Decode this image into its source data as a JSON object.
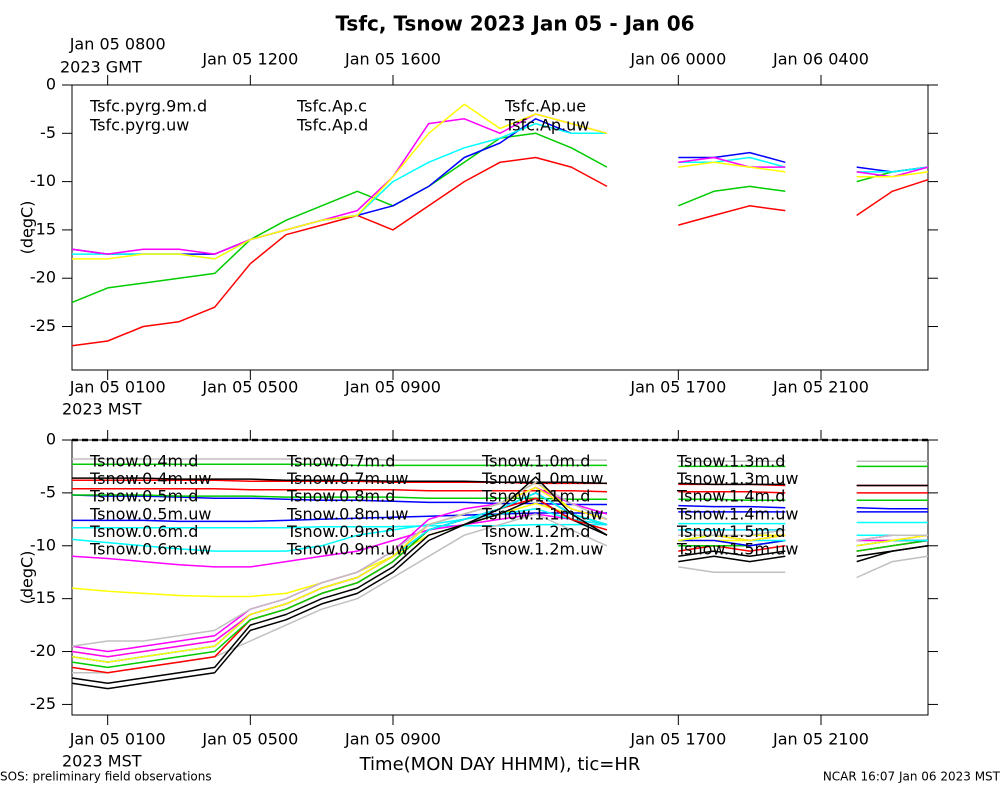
{
  "title": "Tsfc, Tsnow 2023 Jan 05 - Jan 06",
  "xlabel": "Time(MON DAY HHMM), tic=HR",
  "footer_left": "SOS: preliminary field observations",
  "footer_right": "NCAR 16:07 Jan 06 2023 MST",
  "chart_data": [
    {
      "type": "line",
      "ylabel": "(degC)",
      "x": [
        0,
        1,
        2,
        3,
        4,
        5,
        6,
        7,
        8,
        9,
        10,
        11,
        12,
        13,
        14,
        15,
        16,
        17,
        18,
        19,
        20,
        21,
        22,
        23,
        24
      ],
      "xlim": [
        0,
        24
      ],
      "ylim": [
        -29.5,
        0
      ],
      "yticks": [
        0,
        -5,
        -10,
        -15,
        -20,
        -25
      ],
      "xticks": [
        {
          "value": 1,
          "label": "Jan 05 0100"
        },
        {
          "value": 5,
          "label": "Jan 05 0500"
        },
        {
          "value": 9,
          "label": "Jan 05 0900"
        },
        {
          "value": 17,
          "label": "Jan 05 1700"
        },
        {
          "value": 21,
          "label": "Jan 05 2100"
        }
      ],
      "xtick_year_label": "2023 MST",
      "x2ticks": [
        {
          "value": 1,
          "label": "Jan 05 0800"
        },
        {
          "value": 5,
          "label": "Jan 05 1200"
        },
        {
          "value": 9,
          "label": "Jan 05 1600"
        },
        {
          "value": 17,
          "label": "Jan 06 0000"
        },
        {
          "value": 21,
          "label": "Jan 06 0400"
        }
      ],
      "x2tick_year_label": "2023 GMT",
      "series": [
        {
          "name": "Tsfc.pyrg.9m.d",
          "color": "#ff0000",
          "values": [
            -27,
            -26.5,
            -25,
            -24.5,
            -23,
            -18.5,
            -15.5,
            -14.5,
            -13.5,
            -15,
            -12.5,
            -10,
            -8,
            -7.5,
            -8.5,
            -10.5,
            null,
            -14.5,
            -13.5,
            -12.5,
            -13,
            null,
            -13.5,
            -11,
            -9.8
          ]
        },
        {
          "name": "Tsfc.pyrg.uw",
          "color": "#00cc00",
          "values": [
            -22.5,
            -21,
            -20.5,
            -20,
            -19.5,
            -16,
            -14,
            -12.5,
            -11,
            -12.5,
            -10.5,
            -8,
            -5.5,
            -5,
            -6.5,
            -8.5,
            null,
            -12.5,
            -11,
            -10.5,
            -11,
            null,
            -10,
            -9,
            -8.5
          ]
        },
        {
          "name": "Tsfc.Ap.c",
          "color": "#0000ff",
          "values": [
            -17,
            -17.5,
            -17.5,
            -17.5,
            -17.5,
            -16,
            -15,
            -14,
            -13.5,
            -12.5,
            -10.5,
            -7.5,
            -6,
            -3.5,
            -5,
            -5,
            null,
            -7.5,
            -7.5,
            -7,
            -8,
            null,
            -8.5,
            -9,
            -8.5
          ]
        },
        {
          "name": "Tsfc.Ap.d",
          "color": "#00ffff",
          "values": [
            -17.5,
            -17.5,
            -17.5,
            -17.5,
            -18,
            -16,
            -15,
            -14,
            -13.5,
            -10,
            -8,
            -6.5,
            -5.5,
            -4,
            -5,
            -5,
            null,
            -8,
            -8,
            -7.5,
            -8.5,
            null,
            -9,
            -9,
            -8.5
          ]
        },
        {
          "name": "Tsfc.Ap.ue",
          "color": "#ff00ff",
          "values": [
            -17,
            -17.5,
            -17,
            -17,
            -17.5,
            -16,
            -15,
            -14,
            -13,
            -9.5,
            -4,
            -3.5,
            -5,
            -3,
            -4,
            -5,
            null,
            -8,
            -7.5,
            -8.5,
            -8.5,
            null,
            -9,
            -9.5,
            -8.5
          ]
        },
        {
          "name": "Tsfc.Ap.uw",
          "color": "#ffff00",
          "values": [
            -18,
            -18,
            -17.5,
            -17.5,
            -18,
            -16,
            -15,
            -14,
            -13.5,
            -9.5,
            -5,
            -2,
            -4.5,
            -3,
            -4,
            -5,
            null,
            -8.5,
            -8,
            -8.5,
            -9,
            null,
            -9.5,
            -9.5,
            -9
          ]
        }
      ]
    },
    {
      "type": "line",
      "ylabel": "(degC)",
      "x": [
        0,
        1,
        2,
        3,
        4,
        5,
        6,
        7,
        8,
        9,
        10,
        11,
        12,
        13,
        14,
        15,
        16,
        17,
        18,
        19,
        20,
        21,
        22,
        23,
        24
      ],
      "xlim": [
        0,
        24
      ],
      "ylim": [
        -26,
        0
      ],
      "yticks": [
        0,
        -5,
        -10,
        -15,
        -20,
        -25
      ],
      "reference_line": 0,
      "xticks": [
        {
          "value": 1,
          "label": "Jan 05 0100"
        },
        {
          "value": 5,
          "label": "Jan 05 0500"
        },
        {
          "value": 9,
          "label": "Jan 05 0900"
        },
        {
          "value": 17,
          "label": "Jan 05 1700"
        },
        {
          "value": 21,
          "label": "Jan 05 2100"
        }
      ],
      "xtick_year_label": "2023 MST",
      "series": [
        {
          "name": "Tsnow.0.4m.d",
          "color": "#ff0000",
          "values": [
            -3.8,
            -3.8,
            -3.8,
            -3.8,
            -3.8,
            -3.9,
            -3.9,
            -3.9,
            -3.9,
            -4,
            -4,
            -4,
            -4,
            -4.1,
            -4.1,
            -4.1,
            null,
            -4.2,
            -4.2,
            -4.2,
            -4.3,
            null,
            -4.3,
            -4.3,
            -4.3
          ]
        },
        {
          "name": "Tsnow.0.4m.uw",
          "color": "#00cc00",
          "values": [
            -2.3,
            -2.3,
            -2.3,
            -2.3,
            -2.3,
            -2.3,
            -2.3,
            -2.3,
            -2.4,
            -2.4,
            -2.4,
            -2.4,
            -2.4,
            -2.4,
            -2.4,
            -2.4,
            null,
            -2.5,
            -2.5,
            -2.5,
            -2.5,
            null,
            -2.5,
            -2.5,
            -2.5
          ]
        },
        {
          "name": "Tsnow.0.5m.d",
          "color": "#0000ff",
          "values": [
            -5.2,
            -5.3,
            -5.3,
            -5.4,
            -5.5,
            -5.5,
            -5.6,
            -5.7,
            -5.7,
            -5.8,
            -5.9,
            -5.9,
            -6,
            -6,
            -6.1,
            -6.1,
            null,
            -6.2,
            -6.3,
            -6.3,
            -6.4,
            null,
            -6.4,
            -6.5,
            -6.5
          ]
        },
        {
          "name": "Tsnow.0.5m.uw",
          "color": "#00ffff",
          "values": [
            -8.3,
            -8.3,
            -8.3,
            -8.3,
            -8.3,
            -8.3,
            -8.3,
            -8.2,
            -8.2,
            -8.2,
            -8.1,
            -8.1,
            -8.1,
            -8,
            -8,
            -8,
            null,
            -7.9,
            -7.9,
            -7.9,
            -7.9,
            null,
            -7.8,
            -7.8,
            -7.8
          ]
        },
        {
          "name": "Tsnow.0.6m.d",
          "color": "#ff00ff",
          "values": [
            -11,
            -11.2,
            -11.5,
            -11.8,
            -12,
            -12,
            -11.5,
            -11,
            -10.5,
            -9.5,
            -8.5,
            -8,
            -7.5,
            -7,
            -7.5,
            -8,
            null,
            -8.5,
            -8.5,
            -8.5,
            -8.5,
            null,
            -9,
            -9,
            -9
          ]
        },
        {
          "name": "Tsnow.0.6m.uw",
          "color": "#ffff00",
          "values": [
            -14,
            -14.3,
            -14.5,
            -14.7,
            -14.8,
            -14.8,
            -14.5,
            -13.5,
            -12.5,
            -11,
            -9,
            -8,
            -7,
            -6,
            -7,
            -8,
            null,
            -9,
            -9,
            -9,
            -9,
            null,
            -9.5,
            -9.5,
            -9.5
          ]
        },
        {
          "name": "Tsnow.0.7m.d",
          "color": "#c0c0c0",
          "values": [
            -1.8,
            -1.8,
            -1.8,
            -1.8,
            -1.8,
            -1.8,
            -1.8,
            -1.8,
            -1.8,
            -1.9,
            -1.9,
            -1.9,
            -1.9,
            -1.9,
            -1.9,
            -1.9,
            null,
            -2,
            -2,
            -2,
            -2,
            null,
            -2,
            -2,
            -2
          ]
        },
        {
          "name": "Tsnow.0.7m.uw",
          "color": "#000000",
          "values": [
            -3.6,
            -3.6,
            -3.6,
            -3.7,
            -3.7,
            -3.7,
            -3.8,
            -3.8,
            -3.8,
            -3.9,
            -3.9,
            -3.9,
            -4,
            -4,
            -4,
            -4.1,
            null,
            -4.1,
            -4.2,
            -4.2,
            -4.2,
            null,
            -4.3,
            -4.3,
            -4.3
          ]
        },
        {
          "name": "Tsnow.0.8m.d",
          "color": "#ff0000",
          "values": [
            -4.6,
            -4.6,
            -4.6,
            -4.6,
            -4.6,
            -4.7,
            -4.7,
            -4.7,
            -4.7,
            -4.7,
            -4.8,
            -4.8,
            -4.8,
            -4.8,
            -4.8,
            -4.9,
            null,
            -4.9,
            -4.9,
            -4.9,
            -5,
            null,
            -5,
            -5,
            -5
          ]
        },
        {
          "name": "Tsnow.0.8m.uw",
          "color": "#00cc00",
          "values": [
            -5.2,
            -5.2,
            -5.2,
            -5.3,
            -5.3,
            -5.3,
            -5.4,
            -5.4,
            -5.4,
            -5.4,
            -5.5,
            -5.5,
            -5.5,
            -5.5,
            -5.6,
            -5.6,
            null,
            -5.6,
            -5.6,
            -5.7,
            -5.7,
            null,
            -5.7,
            -5.7,
            -5.7
          ]
        },
        {
          "name": "Tsnow.0.9m.d",
          "color": "#0000ff",
          "values": [
            -7.6,
            -7.6,
            -7.6,
            -7.7,
            -7.7,
            -7.7,
            -7.6,
            -7.5,
            -7.4,
            -7.3,
            -7.2,
            -7.1,
            -7,
            -6.9,
            -6.9,
            -6.9,
            null,
            -6.8,
            -6.8,
            -6.8,
            -6.8,
            null,
            -6.8,
            -6.8,
            -6.8
          ]
        },
        {
          "name": "Tsnow.0.9m.uw",
          "color": "#00ffff",
          "values": [
            -9.4,
            -9.7,
            -10,
            -10.3,
            -10.5,
            -10.5,
            -10.5,
            -10,
            -9,
            -8.5,
            -8,
            -7.5,
            -7,
            -6.5,
            -7.5,
            -8,
            null,
            -8.5,
            -8.5,
            -8.5,
            -8.5,
            null,
            -9,
            -9,
            -9
          ]
        },
        {
          "name": "Tsnow.1.0m.d",
          "color": "#ff00ff",
          "values": [
            -19.5,
            -20,
            -19.5,
            -19,
            -18.5,
            -16,
            -15,
            -13.5,
            -12.5,
            -10.5,
            -7.5,
            -6.5,
            -6,
            -4.5,
            -6,
            -7,
            null,
            -9,
            -9,
            -9.5,
            -9,
            null,
            -9.5,
            -9.5,
            -9
          ]
        },
        {
          "name": "Tsnow.1.0m.uw",
          "color": "#ffff00",
          "values": [
            -20,
            -20.5,
            -20,
            -19.5,
            -19,
            -16.5,
            -15.5,
            -14,
            -13,
            -11,
            -8,
            -7,
            -6,
            -4,
            -6.5,
            -7.5,
            null,
            -9.5,
            -9.5,
            -9.5,
            -9,
            null,
            -10,
            -9.5,
            -9.5
          ]
        },
        {
          "name": "Tsnow.1.1m.d",
          "color": "#c0c0c0",
          "values": [
            -22,
            -22,
            -21.5,
            -21,
            -20.5,
            -19,
            -17.5,
            -16,
            -15,
            -13,
            -11,
            -9,
            -8,
            -7,
            -8.5,
            -10,
            null,
            -12,
            -12.5,
            -12.5,
            -12.5,
            null,
            -13,
            -11.5,
            -11
          ]
        },
        {
          "name": "Tsnow.1.1m.uw",
          "color": "#000000",
          "values": [
            -22.5,
            -23,
            -22.5,
            -22,
            -21.5,
            -17.5,
            -16.5,
            -15,
            -14,
            -12,
            -9,
            -8,
            -7,
            -5.5,
            -7.5,
            -9,
            null,
            -11,
            -10.5,
            -11,
            -10.5,
            null,
            -11,
            -10.5,
            -10
          ]
        },
        {
          "name": "Tsnow.1.2m.d",
          "color": "#ff0000",
          "values": [
            -21.5,
            -22,
            -21.5,
            -21,
            -20.5,
            -17,
            -16,
            -14.5,
            -13.5,
            -11.5,
            -8.5,
            -7.5,
            -6.5,
            -5.5,
            -7.5,
            -8.5,
            null,
            -10.5,
            -10,
            -10.5,
            -10,
            null,
            -10.5,
            -10,
            -9.5
          ]
        },
        {
          "name": "Tsnow.1.2m.uw",
          "color": "#00cc00",
          "values": [
            -21,
            -21.5,
            -21,
            -20.5,
            -20,
            -17,
            -16,
            -14.5,
            -13.5,
            -11.5,
            -8.5,
            -7.5,
            -6.5,
            -5,
            -7,
            -8,
            null,
            -10,
            -10,
            -10,
            -9.5,
            null,
            -10.5,
            -10,
            -9.5
          ]
        },
        {
          "name": "Tsnow.1.3m.d",
          "color": "#0000ff",
          "values": [
            -20.5,
            -21,
            -20.5,
            -20,
            -19.5,
            -16.5,
            -15.5,
            -14,
            -13,
            -11,
            -8.5,
            -7.5,
            -6.5,
            -5,
            -7,
            -8,
            null,
            -9.5,
            -9.5,
            -10,
            -9.5,
            null,
            -10,
            -9.5,
            -9.5
          ]
        },
        {
          "name": "Tsnow.1.3m.uw",
          "color": "#00ffff",
          "values": [
            -20.5,
            -21,
            -20.5,
            -20,
            -19.5,
            -16.5,
            -15.5,
            -14,
            -13,
            -11,
            -8.5,
            -7.5,
            -6.5,
            -5,
            -7,
            -8,
            null,
            -9.5,
            -9,
            -9.5,
            -9.5,
            null,
            -10,
            -9.5,
            -9.5
          ]
        },
        {
          "name": "Tsnow.1.4m.d",
          "color": "#ff00ff",
          "values": [
            -20,
            -20.5,
            -20,
            -19.5,
            -19,
            -16.5,
            -15.5,
            -14,
            -13,
            -11,
            -8,
            -7,
            -6,
            -4.5,
            -6.5,
            -7.5,
            null,
            -9,
            -9,
            -9.5,
            -9,
            null,
            -9.5,
            -9,
            -9
          ]
        },
        {
          "name": "Tsnow.1.4m.uw",
          "color": "#ffff00",
          "values": [
            -20.5,
            -21,
            -20.5,
            -20,
            -19.5,
            -16.5,
            -15.5,
            -14,
            -13,
            -11,
            -8,
            -7,
            -6,
            -4.5,
            -6.5,
            -7.5,
            null,
            -9.5,
            -9,
            -9.5,
            -9,
            null,
            -10,
            -9.5,
            -9
          ]
        },
        {
          "name": "Tsnow.1.5m.d",
          "color": "#c0c0c0",
          "values": [
            -19.5,
            -19,
            -19,
            -18.5,
            -18,
            -16,
            -15,
            -13.5,
            -12.5,
            -10.5,
            -8,
            -7,
            -6,
            -4,
            -6,
            -7.5,
            null,
            -9,
            -9,
            -9,
            -8.5,
            null,
            -9.5,
            -9,
            -9
          ]
        },
        {
          "name": "Tsnow.1.5m.uw",
          "color": "#000000",
          "values": [
            -23,
            -23.5,
            -23,
            -22.5,
            -22,
            -18,
            -17,
            -15.5,
            -14.5,
            -12.5,
            -9.5,
            -8,
            -6.5,
            -3.5,
            -7,
            -9,
            null,
            -11.5,
            -11,
            -11.5,
            -11,
            null,
            -11.5,
            -10.5,
            -10
          ]
        }
      ]
    }
  ]
}
